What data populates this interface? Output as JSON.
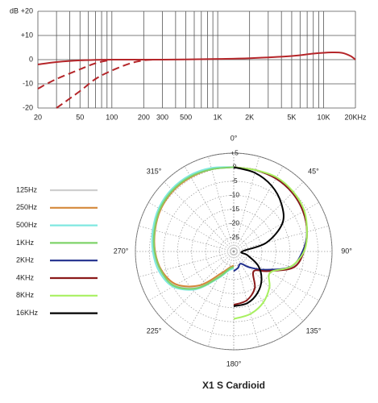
{
  "chart_data": [
    {
      "type": "line",
      "xscale": "log",
      "y_label": "dB",
      "xlim": [
        20,
        20000
      ],
      "ylim": [
        -20,
        20
      ],
      "xticks": [
        20,
        50,
        100,
        200,
        300,
        500,
        {
          "value": 1000,
          "label": "1K"
        },
        {
          "value": 2000,
          "label": "2K"
        },
        {
          "value": 5000,
          "label": "5K"
        },
        {
          "value": 10000,
          "label": "10K"
        },
        {
          "value": 20000,
          "label": "20KHz"
        }
      ],
      "xgrid": [
        20,
        30,
        40,
        50,
        60,
        70,
        80,
        90,
        100,
        200,
        300,
        400,
        500,
        600,
        700,
        800,
        900,
        1000,
        2000,
        3000,
        4000,
        5000,
        6000,
        7000,
        8000,
        9000,
        10000,
        20000
      ],
      "yticks": [
        -20,
        -10,
        0,
        {
          "value": 10,
          "label": "+10"
        },
        {
          "value": 20,
          "label": "+20"
        }
      ],
      "grid": true,
      "series": [
        {
          "color": "#b5262a",
          "dashed": false,
          "x": [
            20,
            30,
            50,
            100,
            300,
            1000,
            2000,
            5000,
            8000,
            12000,
            15000,
            18000,
            20000
          ],
          "values": [
            -2,
            -1,
            -0.3,
            0,
            0,
            0.3,
            0.6,
            1.5,
            2.5,
            3,
            2.8,
            1.5,
            0
          ]
        },
        {
          "color": "#b5262a",
          "dashed": true,
          "x": [
            20,
            30,
            50,
            70,
            100
          ],
          "values": [
            -12,
            -8,
            -4,
            -1.5,
            0
          ]
        },
        {
          "color": "#b5262a",
          "dashed": true,
          "x": [
            30,
            50,
            70,
            100,
            150,
            200,
            250
          ],
          "values": [
            -20,
            -13,
            -8,
            -4.5,
            -1.5,
            -0.3,
            0
          ]
        }
      ]
    },
    {
      "type": "polar",
      "title": "X1 S  Cardioid",
      "legend": "left",
      "rlim": [
        -30,
        5
      ],
      "rticks": [
        {
          "value": 5,
          "label": "+5"
        },
        0,
        -5,
        -10,
        -15,
        -20,
        -25
      ],
      "angle_ticks": [
        {
          "value": 0,
          "label": "0°"
        },
        {
          "value": 45,
          "label": "45°"
        },
        {
          "value": 90,
          "label": "90°"
        },
        {
          "value": 135,
          "label": "135°"
        },
        {
          "value": 180,
          "label": "180°"
        },
        {
          "value": 225,
          "label": "225°"
        },
        {
          "value": 270,
          "label": "270°"
        },
        {
          "value": 315,
          "label": "315°"
        }
      ],
      "angles": [
        0,
        15,
        30,
        45,
        60,
        75,
        90,
        105,
        120,
        135,
        150,
        165,
        180
      ],
      "series": [
        {
          "name": "125Hz",
          "color": "#cfcfcf",
          "side": "left",
          "values": [
            0,
            0.5,
            1,
            1,
            0.5,
            -0.5,
            -1.5,
            -3,
            -6,
            -12,
            -20,
            -24,
            -25
          ]
        },
        {
          "name": "250Hz",
          "color": "#d4883a",
          "side": "left",
          "values": [
            0,
            0.3,
            0.5,
            0.5,
            0,
            -1,
            -2,
            -3.5,
            -6.5,
            -13,
            -21,
            -24,
            -25
          ]
        },
        {
          "name": "500Hz",
          "color": "#7fe8e0",
          "side": "left",
          "values": [
            0,
            0.8,
            1.3,
            1.3,
            0.8,
            -0.2,
            -1.2,
            -2.5,
            -5,
            -11,
            -19,
            -23,
            -24
          ]
        },
        {
          "name": "1KHz",
          "color": "#7ed36a",
          "side": "left",
          "values": [
            0,
            0.3,
            0.8,
            0.8,
            0.3,
            -0.8,
            -1.8,
            -3.2,
            -5.5,
            -11.5,
            -19.5,
            -23.5,
            -24.5
          ]
        },
        {
          "name": "2KHz",
          "color": "#1f2e8c",
          "side": "right",
          "values": [
            0,
            0,
            0,
            -0.5,
            -1.5,
            -3,
            -5.5,
            -9,
            -17,
            -22,
            -25,
            -24,
            -23
          ]
        },
        {
          "name": "4KHz",
          "color": "#8b1a1a",
          "side": "right",
          "values": [
            0,
            0,
            0,
            -0.5,
            -1.5,
            -3,
            -5,
            -8,
            -16,
            -20,
            -15,
            -12,
            -11
          ]
        },
        {
          "name": "8KHz",
          "color": "#a8f060",
          "side": "right",
          "values": [
            0,
            0,
            0.5,
            0,
            -1,
            -3,
            -5,
            -9,
            -15,
            -12,
            -9,
            -7,
            -6
          ]
        },
        {
          "name": "16KHz",
          "color": "#000000",
          "side": "right",
          "values": [
            0,
            -1,
            -3,
            -6,
            -10,
            -18,
            -27,
            -25,
            -20,
            -16,
            -13,
            -11,
            -10.5
          ]
        }
      ]
    }
  ]
}
